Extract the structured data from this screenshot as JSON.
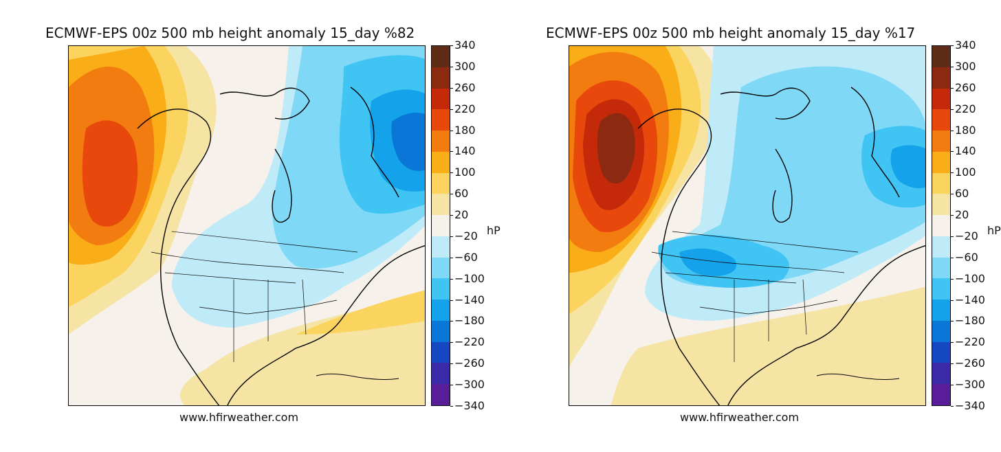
{
  "panels": [
    {
      "title": "ECMWF-EPS 00z 500 mb height anomaly 15_day %82",
      "credit": "www.hfirweather.com",
      "variant": "a"
    },
    {
      "title": "ECMWF-EPS 00z 500 mb height anomaly 15_day %17",
      "credit": "www.hfirweather.com",
      "variant": "b"
    }
  ],
  "colorbar": {
    "unit": "hP",
    "ticks": [
      "340",
      "300",
      "260",
      "220",
      "180",
      "140",
      "100",
      "60",
      "20",
      "−20",
      "−60",
      "−100",
      "−140",
      "−180",
      "−220",
      "−260",
      "−300",
      "−340"
    ],
    "colors": [
      "#5e2c17",
      "#8b2a10",
      "#c42a0a",
      "#e8480b",
      "#f27c10",
      "#f9ad17",
      "#fbd45f",
      "#f6e4a5",
      "#f6f1ea",
      "#bfeaf8",
      "#7ed8f6",
      "#3fc4f4",
      "#14a3ea",
      "#0a76d8",
      "#1547c2",
      "#3a2aa8",
      "#5a1d9a",
      "#7a148e"
    ]
  },
  "palette": {
    "neutral": "#f6f1ea",
    "pos20": "#f6e4a5",
    "pos60": "#fbd45f",
    "pos100": "#f9ad17",
    "pos140": "#f27c10",
    "pos180": "#e8480b",
    "pos220": "#c42a0a",
    "pos260": "#8b2a10",
    "neg20": "#bfeaf8",
    "neg60": "#7ed8f6",
    "neg100": "#3fc4f4",
    "neg140": "#14a3ea",
    "neg180": "#0a76d8"
  }
}
